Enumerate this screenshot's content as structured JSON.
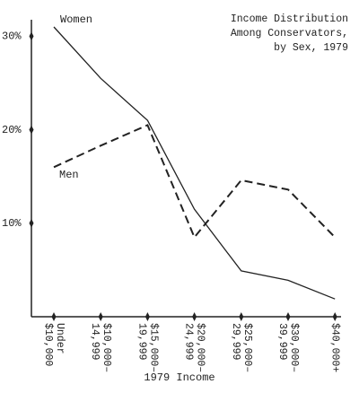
{
  "chart_data": {
    "type": "line",
    "title": "Income Distribution\nAmong Conservators,\nby Sex, 1979",
    "xlabel": "1979 Income",
    "categories": [
      "Under\n$10,000",
      "$10,000–\n14,999",
      "$15,000–\n19,999",
      "$20,000–\n24,999",
      "$25,000–\n29,999",
      "$30,000–\n39,999",
      "$40,000+"
    ],
    "series": [
      {
        "name": "Women",
        "color": "#222222",
        "dashed": false,
        "values": [
          31,
          25.5,
          21,
          11.5,
          4.9,
          3.9,
          1.9
        ]
      },
      {
        "name": "Men",
        "color": "#222222",
        "dashed": true,
        "values": [
          16,
          18.3,
          20.5,
          8.5,
          14.6,
          13.6,
          8.5
        ]
      }
    ],
    "ylim": [
      0,
      31
    ],
    "yticks": [
      {
        "value": 10,
        "label": "10%"
      },
      {
        "value": 20,
        "label": "20%"
      },
      {
        "value": 30,
        "label": "30%"
      }
    ],
    "grid": false
  }
}
